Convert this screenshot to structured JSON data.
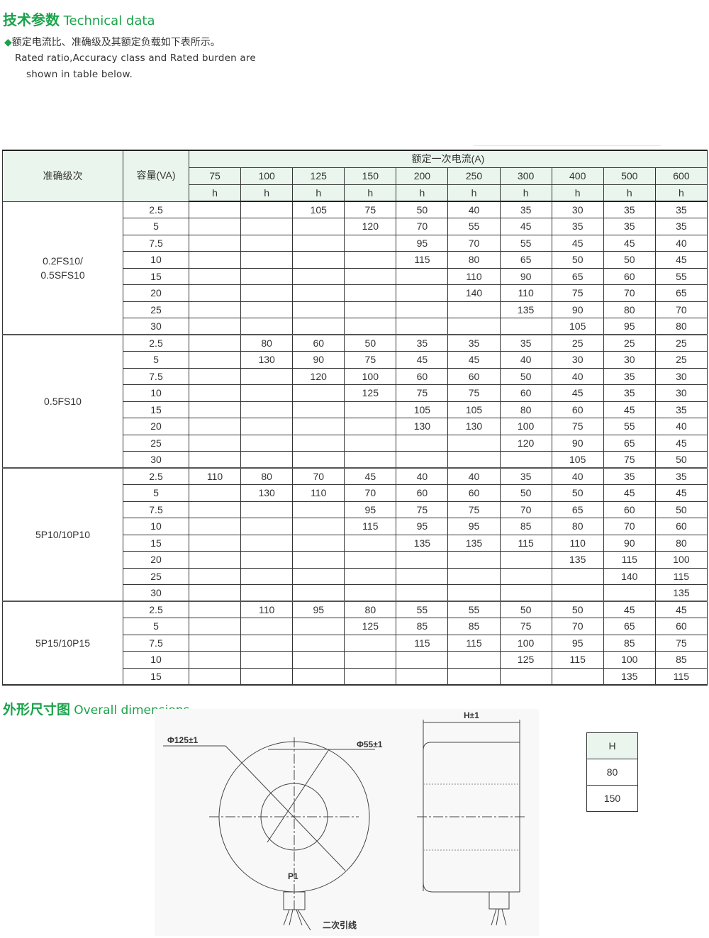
{
  "technical": {
    "title_cn": "技术参数",
    "title_en": "Technical data",
    "bullet_icon": "diamond-icon",
    "accent": "#1aa34a",
    "intro_cn": "额定电流比、准确级及其额定负载如下表所示。",
    "intro_en_1": "Rated ratio,Accuracy class and Rated burden are",
    "intro_en_2": "shown in table below."
  },
  "table": {
    "col_class": "准确级次",
    "col_capacity": "容量(VA)",
    "col_current": "额定一次电流(A)",
    "currents": [
      "75",
      "100",
      "125",
      "150",
      "200",
      "250",
      "300",
      "400",
      "500",
      "600"
    ],
    "unit": "h",
    "groups": [
      {
        "class": "0.2FS10/\n0.5SFS10",
        "rows": [
          [
            "2.5",
            "",
            "",
            "105",
            "75",
            "50",
            "40",
            "35",
            "30",
            "35",
            "35"
          ],
          [
            "5",
            "",
            "",
            "",
            "120",
            "70",
            "55",
            "45",
            "35",
            "35",
            "35"
          ],
          [
            "7.5",
            "",
            "",
            "",
            "",
            "95",
            "70",
            "55",
            "45",
            "45",
            "40"
          ],
          [
            "10",
            "",
            "",
            "",
            "",
            "115",
            "80",
            "65",
            "50",
            "50",
            "45"
          ],
          [
            "15",
            "",
            "",
            "",
            "",
            "",
            "110",
            "90",
            "65",
            "60",
            "55"
          ],
          [
            "20",
            "",
            "",
            "",
            "",
            "",
            "140",
            "110",
            "75",
            "70",
            "65"
          ],
          [
            "25",
            "",
            "",
            "",
            "",
            "",
            "",
            "135",
            "90",
            "80",
            "70"
          ],
          [
            "30",
            "",
            "",
            "",
            "",
            "",
            "",
            "",
            "105",
            "95",
            "80"
          ]
        ]
      },
      {
        "class": "0.5FS10",
        "rows": [
          [
            "2.5",
            "",
            "80",
            "60",
            "50",
            "35",
            "35",
            "35",
            "25",
            "25",
            "25"
          ],
          [
            "5",
            "",
            "130",
            "90",
            "75",
            "45",
            "45",
            "40",
            "30",
            "30",
            "25"
          ],
          [
            "7.5",
            "",
            "",
            "120",
            "100",
            "60",
            "60",
            "50",
            "40",
            "35",
            "30"
          ],
          [
            "10",
            "",
            "",
            "",
            "125",
            "75",
            "75",
            "60",
            "45",
            "35",
            "30"
          ],
          [
            "15",
            "",
            "",
            "",
            "",
            "105",
            "105",
            "80",
            "60",
            "45",
            "35"
          ],
          [
            "20",
            "",
            "",
            "",
            "",
            "130",
            "130",
            "100",
            "75",
            "55",
            "40"
          ],
          [
            "25",
            "",
            "",
            "",
            "",
            "",
            "",
            "120",
            "90",
            "65",
            "45"
          ],
          [
            "30",
            "",
            "",
            "",
            "",
            "",
            "",
            "",
            "105",
            "75",
            "50"
          ]
        ]
      },
      {
        "class": "5P10/10P10",
        "rows": [
          [
            "2.5",
            "110",
            "80",
            "70",
            "45",
            "40",
            "40",
            "35",
            "40",
            "35",
            "35"
          ],
          [
            "5",
            "",
            "130",
            "110",
            "70",
            "60",
            "60",
            "50",
            "50",
            "45",
            "45"
          ],
          [
            "7.5",
            "",
            "",
            "",
            "95",
            "75",
            "75",
            "70",
            "65",
            "60",
            "50"
          ],
          [
            "10",
            "",
            "",
            "",
            "115",
            "95",
            "95",
            "85",
            "80",
            "70",
            "60"
          ],
          [
            "15",
            "",
            "",
            "",
            "",
            "135",
            "135",
            "115",
            "110",
            "90",
            "80"
          ],
          [
            "20",
            "",
            "",
            "",
            "",
            "",
            "",
            "",
            "135",
            "115",
            "100"
          ],
          [
            "25",
            "",
            "",
            "",
            "",
            "",
            "",
            "",
            "",
            "140",
            "115"
          ],
          [
            "30",
            "",
            "",
            "",
            "",
            "",
            "",
            "",
            "",
            "",
            "135"
          ]
        ]
      },
      {
        "class": "5P15/10P15",
        "rows": [
          [
            "2.5",
            "",
            "110",
            "95",
            "80",
            "55",
            "55",
            "50",
            "50",
            "45",
            "45"
          ],
          [
            "5",
            "",
            "",
            "",
            "125",
            "85",
            "85",
            "75",
            "70",
            "65",
            "60"
          ],
          [
            "7.5",
            "",
            "",
            "",
            "",
            "115",
            "115",
            "100",
            "95",
            "85",
            "75"
          ],
          [
            "10",
            "",
            "",
            "",
            "",
            "",
            "",
            "125",
            "115",
            "100",
            "85"
          ],
          [
            "15",
            "",
            "",
            "",
            "",
            "",
            "",
            "",
            "",
            "135",
            "115"
          ]
        ]
      }
    ]
  },
  "dimensions": {
    "title_cn": "外形尺寸图",
    "title_en": "Overall dimensions",
    "outer_dia": "Φ125±1",
    "inner_dia": "Φ55±1",
    "height": "H±1",
    "terminal": "P1",
    "lead": "二次引线",
    "h_table": {
      "header": "H",
      "values": [
        "80",
        "150"
      ]
    }
  }
}
